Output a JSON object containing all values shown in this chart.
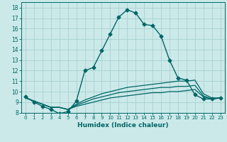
{
  "xlabel": "Humidex (Indice chaleur)",
  "ylabel": "",
  "background_color": "#cce9e9",
  "grid_color": "#aad4d4",
  "line_color": "#006666",
  "xlim": [
    -0.5,
    23.5
  ],
  "ylim": [
    8.0,
    18.5
  ],
  "xticks": [
    0,
    1,
    2,
    3,
    4,
    5,
    6,
    7,
    8,
    9,
    10,
    11,
    12,
    13,
    14,
    15,
    16,
    17,
    18,
    19,
    20,
    21,
    22,
    23
  ],
  "yticks": [
    8,
    9,
    10,
    11,
    12,
    13,
    14,
    15,
    16,
    17,
    18
  ],
  "flat_lines": [
    {
      "x": [
        0,
        1,
        2,
        3,
        4,
        5,
        6,
        7,
        8,
        9,
        10,
        11,
        12,
        13,
        14,
        15,
        16,
        17,
        18,
        19,
        20,
        21,
        22,
        23
      ],
      "y": [
        9.4,
        9.1,
        8.8,
        8.5,
        8.5,
        8.3,
        8.6,
        8.8,
        9.0,
        9.2,
        9.4,
        9.5,
        9.6,
        9.7,
        9.8,
        9.9,
        9.9,
        10.0,
        10.0,
        10.1,
        10.2,
        9.5,
        9.3,
        9.4
      ]
    },
    {
      "x": [
        0,
        1,
        2,
        3,
        4,
        5,
        6,
        7,
        8,
        9,
        10,
        11,
        12,
        13,
        14,
        15,
        16,
        17,
        18,
        19,
        20,
        21,
        22,
        23
      ],
      "y": [
        9.4,
        9.1,
        8.8,
        8.5,
        8.5,
        8.3,
        8.7,
        9.0,
        9.3,
        9.5,
        9.7,
        9.9,
        10.0,
        10.1,
        10.2,
        10.3,
        10.4,
        10.4,
        10.5,
        10.5,
        10.6,
        9.6,
        9.3,
        9.4
      ]
    },
    {
      "x": [
        0,
        1,
        2,
        3,
        4,
        5,
        6,
        7,
        8,
        9,
        10,
        11,
        12,
        13,
        14,
        15,
        16,
        17,
        18,
        19,
        20,
        21,
        22,
        23
      ],
      "y": [
        9.4,
        9.1,
        8.8,
        8.5,
        8.5,
        8.3,
        8.8,
        9.2,
        9.5,
        9.8,
        10.0,
        10.2,
        10.4,
        10.5,
        10.6,
        10.7,
        10.8,
        10.9,
        11.0,
        11.0,
        11.1,
        9.8,
        9.4,
        9.4
      ]
    }
  ],
  "main_series": {
    "x": [
      0,
      1,
      2,
      3,
      4,
      5,
      6,
      7,
      8,
      9,
      10,
      11,
      12,
      13,
      14,
      15,
      16,
      17,
      18,
      19,
      20,
      21,
      22,
      23
    ],
    "y": [
      9.5,
      9.0,
      8.6,
      8.3,
      7.9,
      8.1,
      9.1,
      12.0,
      12.3,
      13.9,
      15.5,
      17.1,
      17.8,
      17.5,
      16.4,
      16.3,
      15.3,
      13.0,
      11.3,
      11.1,
      9.7,
      9.3,
      9.3,
      9.4
    ]
  }
}
